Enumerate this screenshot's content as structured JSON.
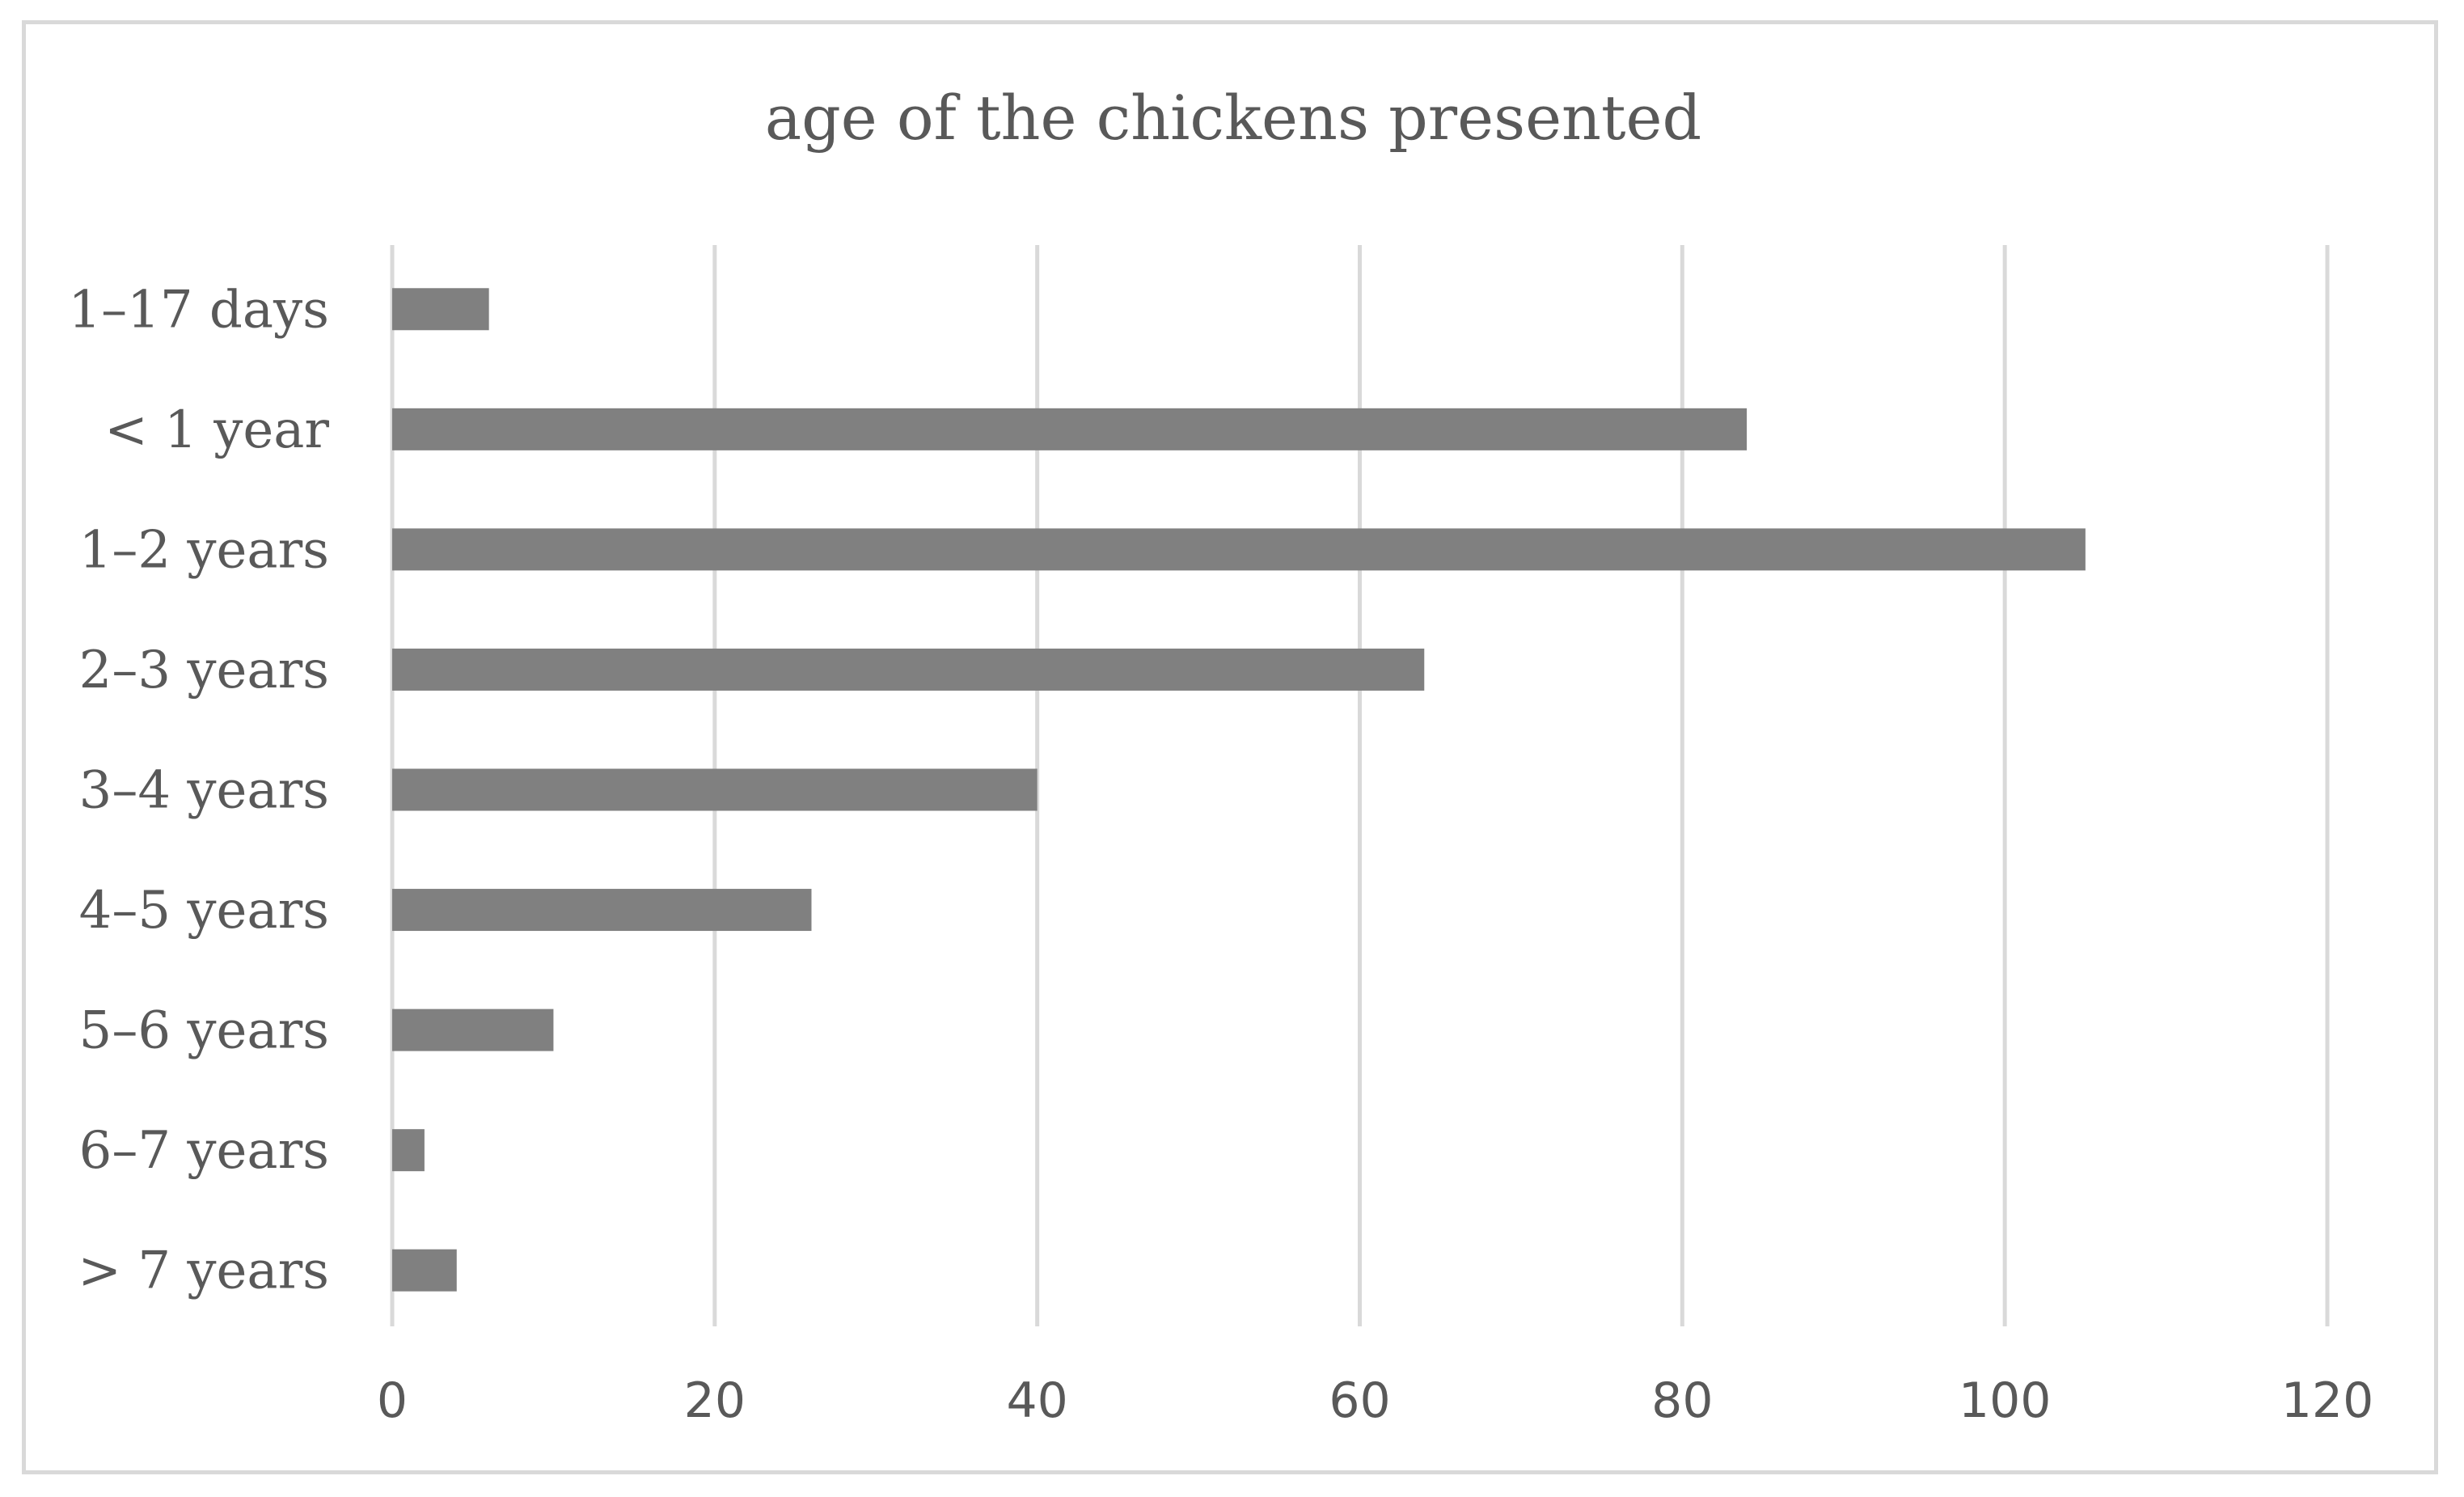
{
  "chart_data": {
    "type": "bar",
    "orientation": "horizontal",
    "title": "age of the chickens presented",
    "categories": [
      "1–17 days",
      "< 1 year",
      "1–2 years",
      "2–3 years",
      "3–4 years",
      "4–5 years",
      "5–6 years",
      "6–7 years",
      "> 7 years"
    ],
    "values": [
      6,
      84,
      105,
      64,
      40,
      26,
      10,
      2,
      4
    ],
    "xlim": [
      0,
      120
    ],
    "x_ticks": [
      "0",
      "20",
      "40",
      "60",
      "80",
      "100",
      "120"
    ],
    "x_tick_values": [
      0,
      20,
      40,
      60,
      80,
      100,
      120
    ],
    "grid": "vertical",
    "bar_color": "#808080",
    "grid_color": "#d9d9d9",
    "text_color": "#595959"
  }
}
